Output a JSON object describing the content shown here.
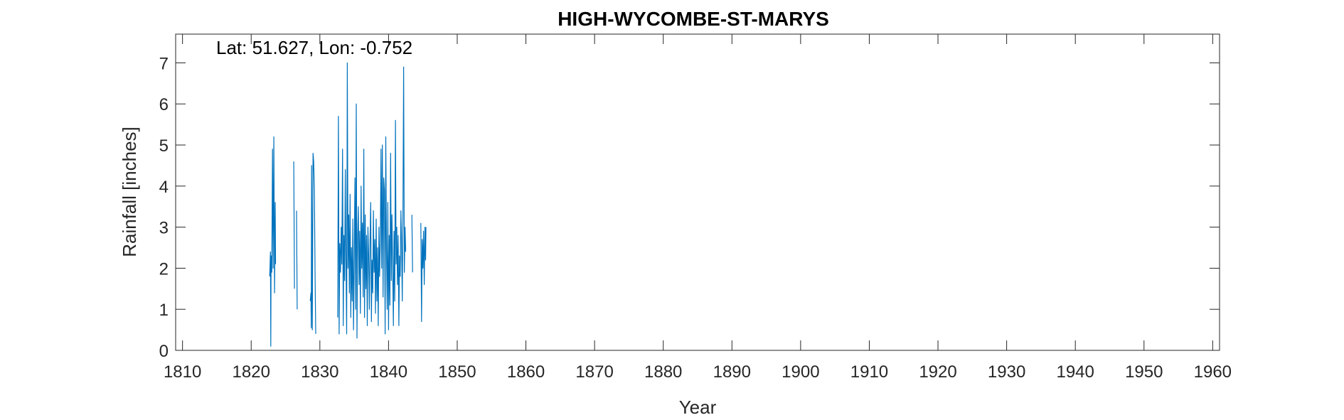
{
  "chart_data": {
    "type": "line",
    "title": "HIGH-WYCOMBE-ST-MARYS",
    "xlabel": "Year",
    "ylabel": "Rainfall [inches]",
    "annotation": "Lat: 51.627, Lon: -0.752",
    "xlim": [
      1809,
      1961
    ],
    "ylim": [
      0,
      7.7
    ],
    "xticks": [
      1810,
      1820,
      1830,
      1840,
      1850,
      1860,
      1870,
      1880,
      1890,
      1900,
      1910,
      1920,
      1930,
      1940,
      1950,
      1960
    ],
    "yticks": [
      0,
      1,
      2,
      3,
      4,
      5,
      6,
      7
    ],
    "grid": false,
    "box": true,
    "color": "#0072bd",
    "series": [
      {
        "segments": [
          [
            [
              1822.7,
              1.8
            ],
            [
              1822.8,
              2.4
            ],
            [
              1822.85,
              0.1
            ],
            [
              1822.9,
              2.3
            ],
            [
              1823.0,
              1.9
            ],
            [
              1823.1,
              4.9
            ],
            [
              1823.2,
              2.0
            ],
            [
              1823.3,
              5.2
            ],
            [
              1823.35,
              3.2
            ],
            [
              1823.4,
              1.4
            ],
            [
              1823.5,
              3.6
            ],
            [
              1823.55,
              2.1
            ]
          ],
          [
            [
              1826.2,
              4.6
            ],
            [
              1826.3,
              1.5
            ]
          ],
          [
            [
              1826.6,
              3.4
            ],
            [
              1826.7,
              1.0
            ]
          ],
          [
            [
              1828.6,
              1.2
            ],
            [
              1828.7,
              1.4
            ],
            [
              1828.75,
              0.55
            ],
            [
              1828.8,
              4.5
            ],
            [
              1828.9,
              0.5
            ],
            [
              1829.0,
              4.8
            ],
            [
              1829.1,
              4.6
            ],
            [
              1829.2,
              3.9
            ],
            [
              1829.3,
              1.8
            ],
            [
              1829.4,
              0.4
            ]
          ],
          [
            [
              1832.6,
              0.8
            ],
            [
              1832.7,
              5.7
            ],
            [
              1832.8,
              0.4
            ],
            [
              1832.9,
              2.6
            ],
            [
              1833.0,
              1.9
            ],
            [
              1833.1,
              3.0
            ],
            [
              1833.2,
              2.1
            ],
            [
              1833.3,
              4.9
            ],
            [
              1833.4,
              0.6
            ],
            [
              1833.5,
              2.8
            ],
            [
              1833.6,
              1.7
            ],
            [
              1833.7,
              4.4
            ],
            [
              1833.8,
              2.2
            ],
            [
              1833.9,
              0.4
            ],
            [
              1834.0,
              7.0
            ],
            [
              1834.1,
              2.0
            ],
            [
              1834.2,
              3.3
            ],
            [
              1834.3,
              1.4
            ],
            [
              1834.4,
              3.8
            ],
            [
              1834.5,
              0.8
            ],
            [
              1834.6,
              2.5
            ],
            [
              1834.7,
              1.2
            ],
            [
              1834.8,
              3.2
            ],
            [
              1834.9,
              0.5
            ],
            [
              1835.0,
              2.1
            ],
            [
              1835.1,
              4.2
            ],
            [
              1835.2,
              1.0
            ],
            [
              1835.3,
              6.0
            ],
            [
              1835.4,
              0.3
            ],
            [
              1835.5,
              2.7
            ],
            [
              1835.6,
              3.5
            ],
            [
              1835.7,
              1.6
            ],
            [
              1835.8,
              2.9
            ],
            [
              1835.9,
              0.9
            ],
            [
              1836.0,
              4.0
            ],
            [
              1836.1,
              2.0
            ],
            [
              1836.2,
              3.1
            ],
            [
              1836.3,
              1.3
            ],
            [
              1836.4,
              4.9
            ],
            [
              1836.5,
              0.8
            ],
            [
              1836.6,
              3.3
            ],
            [
              1836.7,
              1.5
            ],
            [
              1836.8,
              2.8
            ],
            [
              1836.9,
              0.6
            ],
            [
              1837.0,
              3.0
            ],
            [
              1837.1,
              2.3
            ],
            [
              1837.2,
              1.0
            ],
            [
              1837.3,
              2.6
            ],
            [
              1837.4,
              3.6
            ],
            [
              1837.5,
              0.7
            ],
            [
              1837.6,
              2.2
            ],
            [
              1837.7,
              1.4
            ],
            [
              1837.8,
              3.4
            ],
            [
              1837.9,
              1.9
            ],
            [
              1838.0,
              2.7
            ],
            [
              1838.1,
              0.9
            ],
            [
              1838.2,
              3.2
            ],
            [
              1838.3,
              1.2
            ],
            [
              1838.4,
              2.5
            ],
            [
              1838.5,
              0.6
            ],
            [
              1838.6,
              3.0
            ],
            [
              1838.7,
              1.8
            ],
            [
              1838.8,
              2.6
            ],
            [
              1838.9,
              4.9
            ],
            [
              1839.0,
              2.0
            ],
            [
              1839.1,
              5.0
            ],
            [
              1839.2,
              1.3
            ],
            [
              1839.3,
              4.2
            ],
            [
              1839.4,
              3.9
            ],
            [
              1839.5,
              0.4
            ],
            [
              1839.6,
              5.2
            ],
            [
              1839.7,
              2.4
            ],
            [
              1839.8,
              1.0
            ],
            [
              1839.9,
              3.6
            ],
            [
              1840.0,
              0.5
            ],
            [
              1840.1,
              2.8
            ],
            [
              1840.2,
              1.1
            ],
            [
              1840.3,
              4.8
            ],
            [
              1840.4,
              1.7
            ],
            [
              1840.5,
              3.3
            ],
            [
              1840.6,
              2.0
            ],
            [
              1840.7,
              0.6
            ],
            [
              1840.8,
              2.9
            ],
            [
              1840.9,
              1.2
            ],
            [
              1841.0,
              5.6
            ],
            [
              1841.1,
              2.1
            ],
            [
              1841.2,
              3.0
            ],
            [
              1841.3,
              1.6
            ],
            [
              1841.4,
              2.8
            ],
            [
              1841.5,
              0.6
            ],
            [
              1841.6,
              2.3
            ],
            [
              1841.7,
              1.8
            ],
            [
              1841.8,
              3.4
            ],
            [
              1841.9,
              2.6
            ],
            [
              1842.0,
              1.2
            ],
            [
              1842.1,
              3.5
            ],
            [
              1842.2,
              6.9
            ],
            [
              1842.3,
              1.9
            ],
            [
              1842.4,
              3.0
            ],
            [
              1842.5,
              2.4
            ]
          ],
          [
            [
              1843.4,
              3.3
            ],
            [
              1843.5,
              1.9
            ]
          ],
          [
            [
              1844.7,
              3.1
            ],
            [
              1844.8,
              0.7
            ],
            [
              1844.9,
              2.7
            ],
            [
              1845.0,
              2.0
            ],
            [
              1845.1,
              2.9
            ],
            [
              1845.2,
              1.6
            ],
            [
              1845.3,
              3.0
            ],
            [
              1845.4,
              2.2
            ],
            [
              1845.45,
              3.0
            ]
          ]
        ]
      }
    ]
  }
}
